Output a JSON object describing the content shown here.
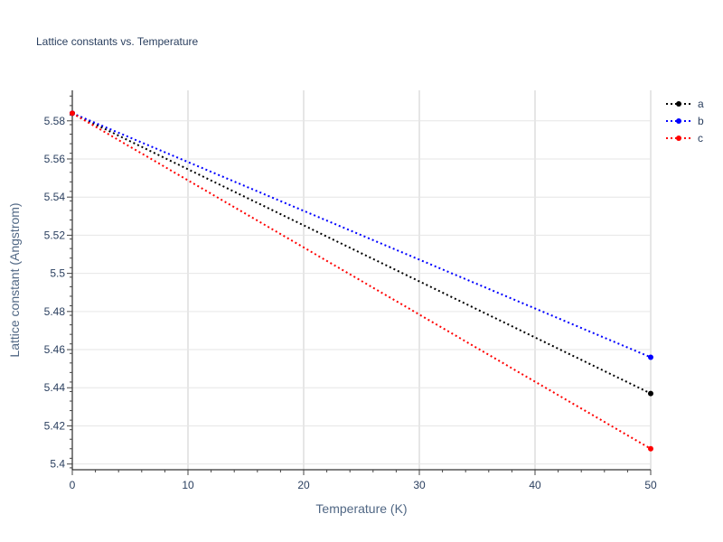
{
  "chart_data": {
    "type": "line",
    "title": "Lattice constants vs. Temperature",
    "xlabel": "Temperature (K)",
    "ylabel": "Lattice constant (Angstrom)",
    "xlim": [
      0,
      50
    ],
    "ylim": [
      5.397,
      5.596
    ],
    "xticks": [
      0,
      10,
      20,
      30,
      40,
      50
    ],
    "yticks": [
      5.4,
      5.42,
      5.44,
      5.46,
      5.48,
      5.5,
      5.52,
      5.54,
      5.56,
      5.58
    ],
    "ytick_labels": [
      "5.4",
      "5.42",
      "5.44",
      "5.46",
      "5.48",
      "5.5",
      "5.52",
      "5.54",
      "5.56",
      "5.58"
    ],
    "grid": true,
    "legend_position": "top-right",
    "series": [
      {
        "name": "a",
        "color": "#000000",
        "x": [
          0,
          50
        ],
        "y": [
          5.584,
          5.437
        ]
      },
      {
        "name": "b",
        "color": "#0000ff",
        "x": [
          0,
          50
        ],
        "y": [
          5.584,
          5.456
        ]
      },
      {
        "name": "c",
        "color": "#ff0000",
        "x": [
          0,
          50
        ],
        "y": [
          5.584,
          5.408
        ]
      }
    ]
  }
}
